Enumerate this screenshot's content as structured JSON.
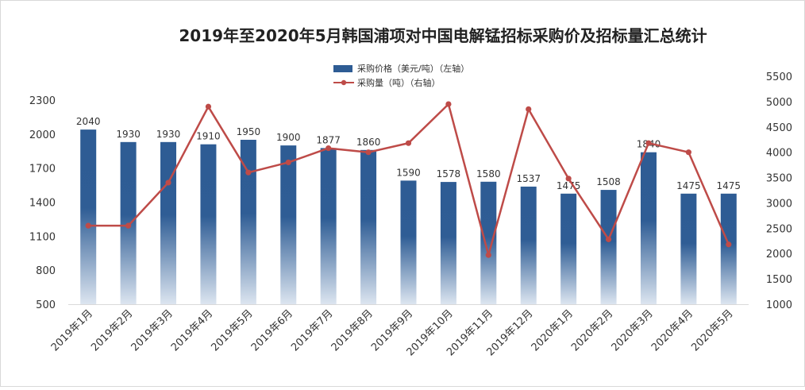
{
  "chart_data": {
    "type": "bar+line",
    "title": "2019年至2020年5月韩国浦项对中国电解锰招标采购价及招标量汇总统计",
    "categories": [
      "2019年1月",
      "2019年2月",
      "2019年3月",
      "2019年4月",
      "2019年5月",
      "2019年6月",
      "2019年7月",
      "2019年8月",
      "2019年9月",
      "2019年10月",
      "2019年11月",
      "2019年12月",
      "2020年1月",
      "2020年2月",
      "2020年3月",
      "2020年4月",
      "2020年5月"
    ],
    "series": [
      {
        "name": "采购价格（美元/吨）（左轴）",
        "type": "bar",
        "axis": "left",
        "color": "#2E5C94",
        "values": [
          2040,
          1930,
          1930,
          1910,
          1950,
          1900,
          1877,
          1860,
          1590,
          1578,
          1580,
          1537,
          1475,
          1508,
          1840,
          1475,
          1475
        ],
        "labels": [
          "2040",
          "1930",
          "1930",
          "1910",
          "1950",
          "1900",
          "1877",
          "1860",
          "1590",
          "1578",
          "1580",
          "1537",
          "1475",
          "1508",
          "1840",
          "1475",
          "1475"
        ]
      },
      {
        "name": "采购量（吨）（右轴）",
        "type": "line",
        "axis": "right",
        "color": "#BE4B48",
        "values": [
          2550,
          2550,
          3400,
          4900,
          3600,
          3800,
          4080,
          4000,
          4180,
          4950,
          1970,
          4850,
          3480,
          2280,
          4180,
          4000,
          2180
        ]
      }
    ],
    "y_left": {
      "min": 500,
      "max": 2300,
      "ticks": [
        "500",
        "800",
        "1100",
        "1400",
        "1700",
        "2000",
        "2300"
      ]
    },
    "y_right": {
      "min": 1000,
      "max": 5500,
      "ticks": [
        "1000",
        "1500",
        "2000",
        "2500",
        "3000",
        "3500",
        "4000",
        "4500",
        "5000",
        "5500"
      ]
    },
    "legend_position": "top-center",
    "grid": false
  }
}
